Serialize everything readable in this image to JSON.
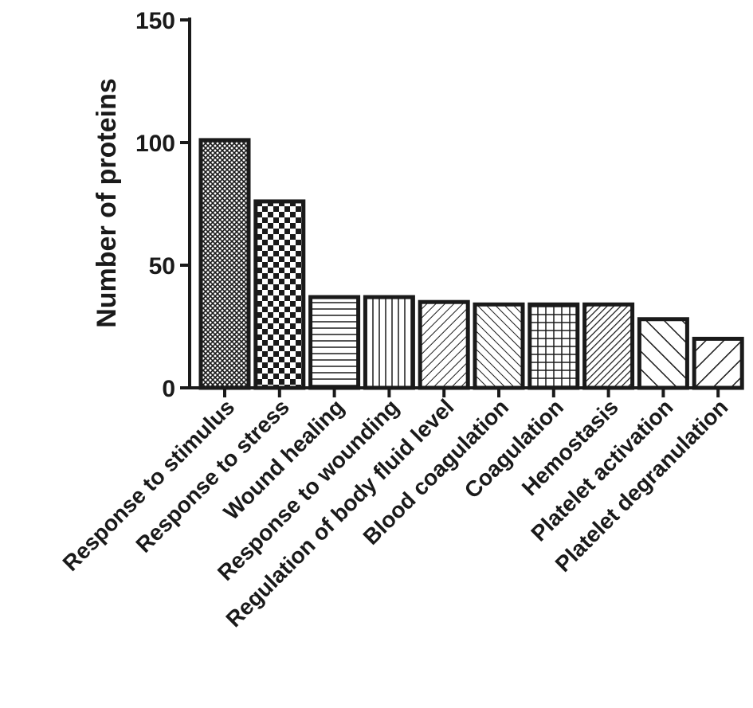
{
  "chart_data": {
    "type": "bar",
    "title": "",
    "xlabel": "",
    "ylabel": "Number of proteins",
    "ylim": [
      0,
      150
    ],
    "yticks": [
      0,
      50,
      100,
      150
    ],
    "categories": [
      "Response to stimulus",
      "Response to stress",
      "Wound healing",
      "Response to wounding",
      "Regulation of body fluid level",
      "Blood coagulation",
      "Coagulation",
      "Hemostasis",
      "Platelet activation",
      "Platelet degranulation"
    ],
    "values": [
      101,
      76,
      37,
      37,
      35,
      34,
      34,
      34,
      28,
      20
    ],
    "patterns": [
      "crosshatch-fine",
      "checker",
      "horizontal",
      "vertical",
      "diagonal-fine",
      "diagonal-back-fine",
      "grid",
      "diagonal-dense",
      "diagonal-back-wide",
      "diagonal-wide"
    ],
    "grid": false,
    "bar_color": "#ffffff",
    "edge_color": "#1a1a1a"
  }
}
